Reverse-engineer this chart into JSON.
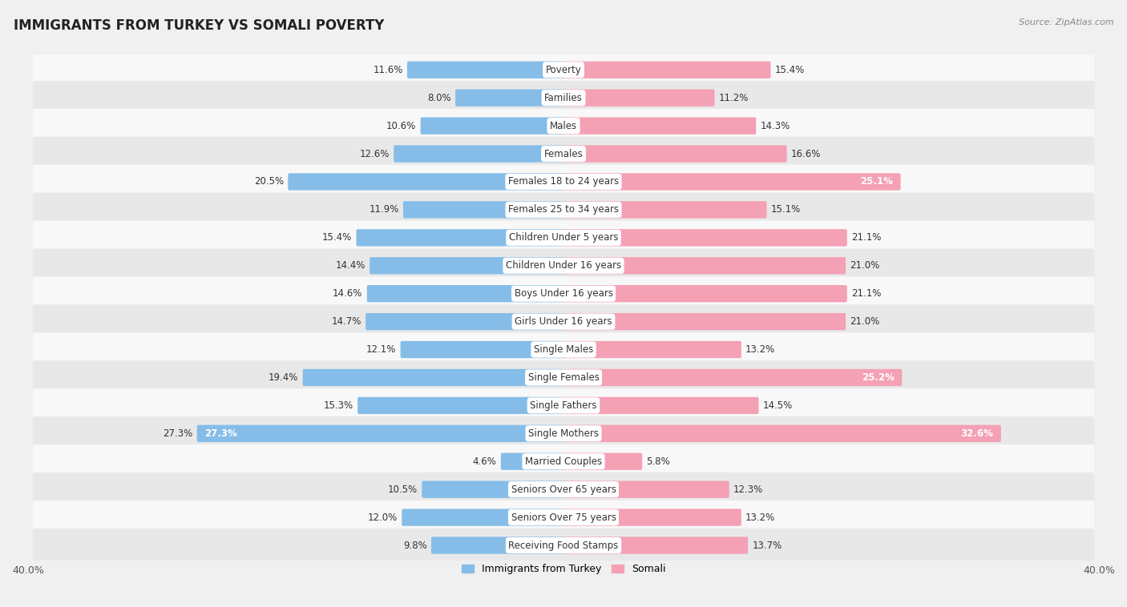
{
  "title": "IMMIGRANTS FROM TURKEY VS SOMALI POVERTY",
  "source": "Source: ZipAtlas.com",
  "categories": [
    "Poverty",
    "Families",
    "Males",
    "Females",
    "Females 18 to 24 years",
    "Females 25 to 34 years",
    "Children Under 5 years",
    "Children Under 16 years",
    "Boys Under 16 years",
    "Girls Under 16 years",
    "Single Males",
    "Single Females",
    "Single Fathers",
    "Single Mothers",
    "Married Couples",
    "Seniors Over 65 years",
    "Seniors Over 75 years",
    "Receiving Food Stamps"
  ],
  "turkey_values": [
    11.6,
    8.0,
    10.6,
    12.6,
    20.5,
    11.9,
    15.4,
    14.4,
    14.6,
    14.7,
    12.1,
    19.4,
    15.3,
    27.3,
    4.6,
    10.5,
    12.0,
    9.8
  ],
  "somali_values": [
    15.4,
    11.2,
    14.3,
    16.6,
    25.1,
    15.1,
    21.1,
    21.0,
    21.1,
    21.0,
    13.2,
    25.2,
    14.5,
    32.6,
    5.8,
    12.3,
    13.2,
    13.7
  ],
  "turkey_color": "#85BDE8",
  "somali_color": "#F4A0B5",
  "turkey_label": "Immigrants from Turkey",
  "somali_label": "Somali",
  "xlim": 40.0,
  "background_color": "#f0f0f0",
  "row_bg_light": "#f8f8f8",
  "row_bg_dark": "#e8e8e8",
  "title_fontsize": 12,
  "label_fontsize": 8.5,
  "value_fontsize": 8.5,
  "legend_fontsize": 9,
  "axis_label_fontsize": 9
}
